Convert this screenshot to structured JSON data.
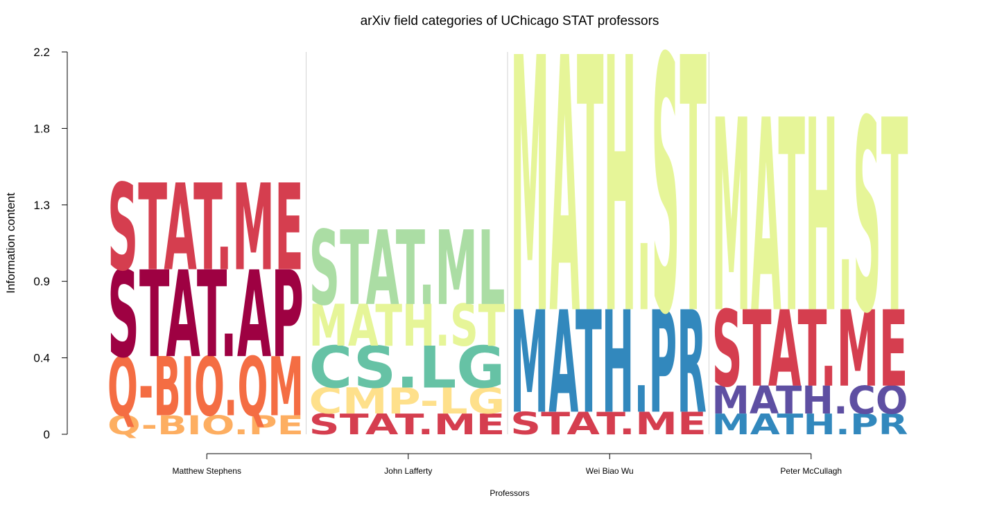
{
  "chart_data": {
    "type": "logo",
    "title": "arXiv field categories of UChicago STAT professors",
    "xlabel": "Professors",
    "ylabel": "Information content",
    "ylim": [
      0,
      2.2
    ],
    "yticks": [
      "0",
      "0.4",
      "0.9",
      "1.3",
      "1.8",
      "2.2"
    ],
    "categories": [
      "Matthew Stephens",
      "John Lafferty",
      "Wei Biao Wu",
      "Peter McCullagh"
    ],
    "stacks": [
      [
        {
          "label": "Q-BIO.PE",
          "value": 0.11,
          "color": "#fdae61"
        },
        {
          "label": "Q-BIO.QM",
          "value": 0.34,
          "color": "#f46d43"
        },
        {
          "label": "STAT.AP",
          "value": 0.5,
          "color": "#9e0142"
        },
        {
          "label": "STAT.ME",
          "value": 0.5,
          "color": "#d53e4f"
        }
      ],
      [
        {
          "label": "STAT.ME",
          "value": 0.12,
          "color": "#d53e4f"
        },
        {
          "label": "CMP-LG",
          "value": 0.15,
          "color": "#fee08b"
        },
        {
          "label": "CS.LG",
          "value": 0.24,
          "color": "#66c2a5"
        },
        {
          "label": "MATH.ST",
          "value": 0.24,
          "color": "#e6f598"
        },
        {
          "label": "STAT.ML",
          "value": 0.43,
          "color": "#abdda4"
        }
      ],
      [
        {
          "label": "STAT.ME",
          "value": 0.13,
          "color": "#d53e4f"
        },
        {
          "label": "MATH.PR",
          "value": 0.59,
          "color": "#3288bd"
        },
        {
          "label": "MATH.ST",
          "value": 1.47,
          "color": "#e6f598"
        }
      ],
      [
        {
          "label": "MATH.PR",
          "value": 0.12,
          "color": "#3288bd"
        },
        {
          "label": "MATH.CO",
          "value": 0.16,
          "color": "#5e4fa2"
        },
        {
          "label": "STAT.ME",
          "value": 0.44,
          "color": "#d53e4f"
        },
        {
          "label": "MATH.ST",
          "value": 1.11,
          "color": "#e6f598"
        }
      ]
    ]
  }
}
